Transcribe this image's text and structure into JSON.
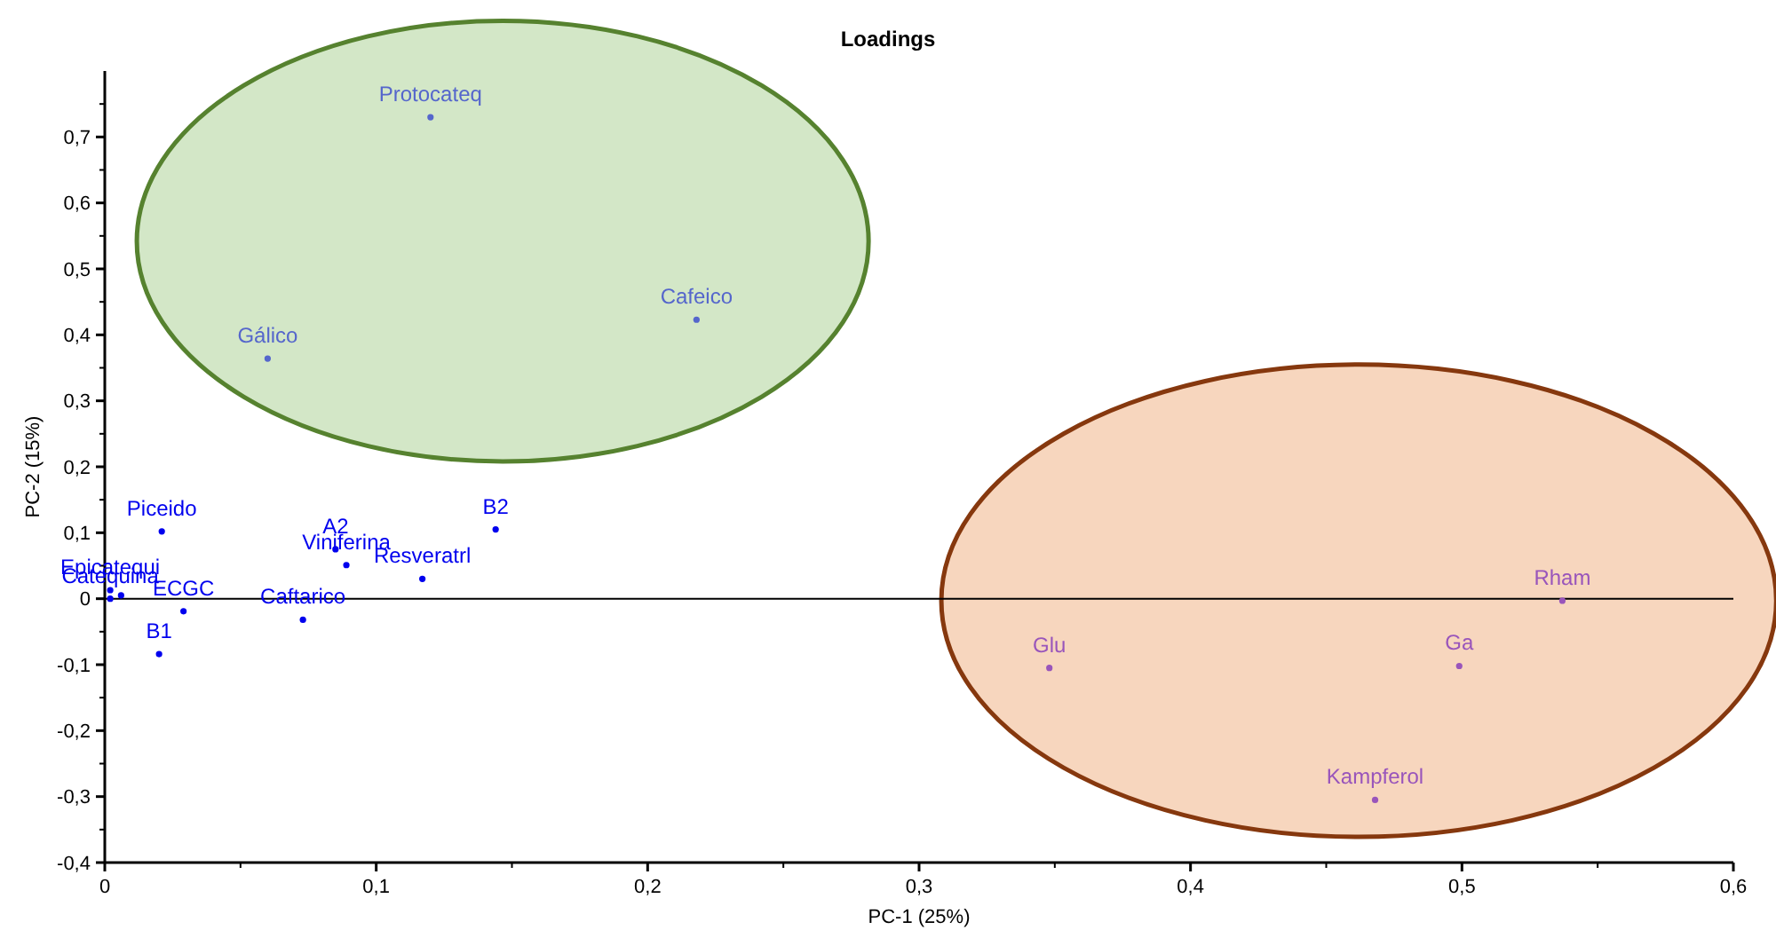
{
  "chart_data": {
    "type": "scatter",
    "title": "Loadings",
    "xlabel": "PC-1 (25%)",
    "ylabel": "PC-2 (15%)",
    "marker": "circle",
    "grid": false,
    "xlim": [
      0,
      0.6
    ],
    "ylim": [
      -0.4,
      0.8
    ],
    "xticks": [
      0,
      {
        "value": 0.1,
        "label": "0,1"
      },
      {
        "value": 0.2,
        "label": "0,2"
      },
      {
        "value": 0.3,
        "label": "0,3"
      },
      {
        "value": 0.4,
        "label": "0,4"
      },
      {
        "value": 0.5,
        "label": "0,5"
      },
      {
        "value": 0.6,
        "label": "0,6"
      }
    ],
    "yticks": [
      {
        "value": -0.4,
        "label": "-0,4"
      },
      {
        "value": -0.3,
        "label": "-0,3"
      },
      {
        "value": -0.2,
        "label": "-0,2"
      },
      {
        "value": -0.1,
        "label": "-0,1"
      },
      0,
      {
        "value": 0.1,
        "label": "0,1"
      },
      {
        "value": 0.2,
        "label": "0,2"
      },
      {
        "value": 0.3,
        "label": "0,3"
      },
      {
        "value": 0.4,
        "label": "0,4"
      },
      {
        "value": 0.5,
        "label": "0,5"
      },
      {
        "value": 0.6,
        "label": "0,6"
      },
      {
        "value": 0.7,
        "label": "0,7"
      }
    ],
    "ref_lines": [
      {
        "axis": "y",
        "value": 0,
        "color": "#000000"
      }
    ],
    "series": [
      {
        "color": "#0000ee",
        "x": [
          0.021,
          0.085,
          0.089,
          0.117,
          0.144,
          0.073,
          0.029,
          0.02,
          0.002,
          0.002,
          0.006
        ],
        "values": [
          0.102,
          0.075,
          0.051,
          0.03,
          0.105,
          -0.032,
          -0.019,
          -0.084,
          0.013,
          0.0,
          0.005
        ]
      },
      {
        "color": "#5566cc",
        "x": [
          0.12,
          0.06,
          0.218
        ],
        "values": [
          0.73,
          0.364,
          0.423
        ]
      },
      {
        "color": "#9955bb",
        "x": [
          0.537,
          0.348,
          0.499,
          0.468
        ],
        "values": [
          -0.003,
          -0.105,
          -0.102,
          -0.305
        ]
      }
    ],
    "annotations": [
      {
        "text": "Piceido",
        "x": 0.021,
        "y": 0.102
      },
      {
        "text": "A2",
        "x": 0.085,
        "y": 0.075
      },
      {
        "text": "Viniferina",
        "x": 0.089,
        "y": 0.051
      },
      {
        "text": "Resveratrl",
        "x": 0.117,
        "y": 0.03
      },
      {
        "text": "B2",
        "x": 0.144,
        "y": 0.105
      },
      {
        "text": "Caftarico",
        "x": 0.073,
        "y": -0.032
      },
      {
        "text": "ECGC",
        "x": 0.029,
        "y": -0.019
      },
      {
        "text": "B1",
        "x": 0.02,
        "y": -0.084
      },
      {
        "text": "Epicatequi",
        "x": 0.002,
        "y": 0.013
      },
      {
        "text": "Catequina",
        "x": 0.002,
        "y": 0.0
      },
      {
        "text": "Protocateq",
        "x": 0.12,
        "y": 0.73
      },
      {
        "text": "Gálico",
        "x": 0.06,
        "y": 0.364
      },
      {
        "text": "Cafeico",
        "x": 0.218,
        "y": 0.423
      },
      {
        "text": "Rham",
        "x": 0.537,
        "y": -0.003
      },
      {
        "text": "Glu",
        "x": 0.348,
        "y": -0.105
      },
      {
        "text": "Ga",
        "x": 0.499,
        "y": -0.102
      },
      {
        "text": "Kampferol",
        "x": 0.468,
        "y": -0.305
      }
    ]
  }
}
